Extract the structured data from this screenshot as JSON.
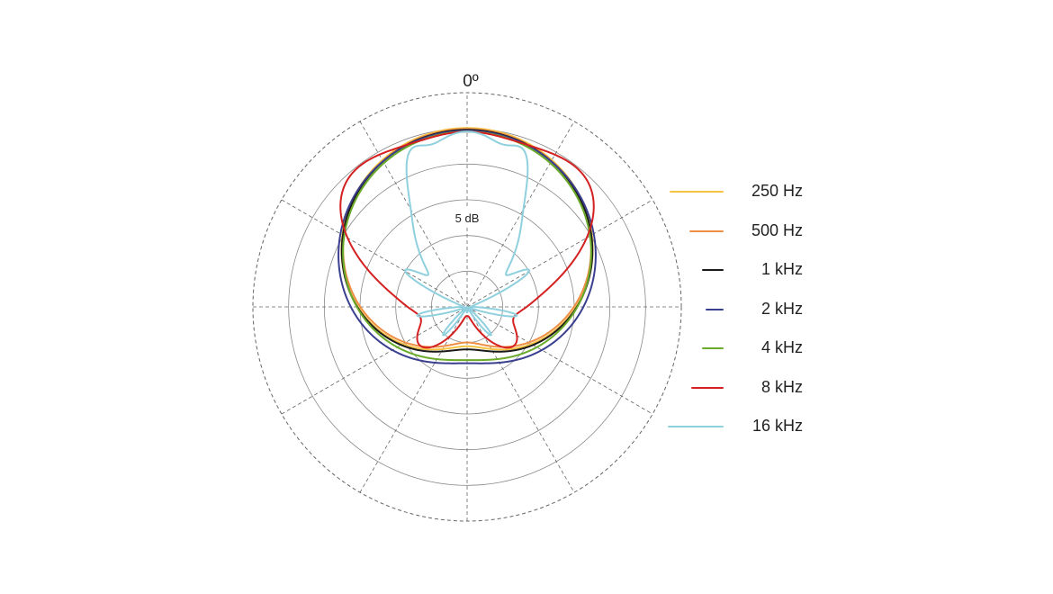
{
  "chart_data": {
    "type": "polar",
    "title": "",
    "angle_label": "0º",
    "radial_label": "5 dB",
    "radial_rings": 6,
    "angle_step_deg": 30,
    "max_level": 1.0,
    "series": [
      {
        "name": "250 Hz",
        "color": "#f5c242",
        "swatch_length": 60,
        "pattern": {
          "type": "cardioid",
          "a": 0.61,
          "power": 1.0,
          "scale": 1.0
        }
      },
      {
        "name": "500 Hz",
        "color": "#ef8f45",
        "swatch_length": 38,
        "pattern": {
          "type": "cardioid",
          "a": 0.6,
          "power": 1.0,
          "scale": 0.995
        }
      },
      {
        "name": "1 kHz",
        "color": "#1a1a1a",
        "swatch_length": 24,
        "pattern": {
          "type": "cardioid",
          "a": 0.62,
          "power": 1.0,
          "scale": 0.99
        }
      },
      {
        "name": "2 kHz",
        "color": "#3b3f8f",
        "swatch_length": 20,
        "pattern": {
          "type": "cardioid",
          "a": 0.66,
          "power": 1.0,
          "scale": 0.985
        }
      },
      {
        "name": "4 kHz",
        "color": "#6aaa2a",
        "swatch_length": 24,
        "pattern": {
          "type": "cardioid",
          "a": 0.7,
          "power": 1.3,
          "scale": 0.98
        }
      },
      {
        "name": "8 kHz",
        "color": "#d42020",
        "swatch_length": 36,
        "pattern": {
          "type": "lobed",
          "a": 0.66,
          "power": 2.6,
          "scale": 0.98,
          "lobe_amp": 0.13,
          "lobe_n": 4,
          "lobe_width": 0.35
        }
      },
      {
        "name": "16 kHz",
        "color": "#8fd0de",
        "swatch_length": 62,
        "pattern": {
          "type": "spiky",
          "a": 0.55,
          "power": 7.5,
          "scale": 0.98,
          "lobe_amp": 0.18,
          "lobe_n": 9,
          "lobe_width": 0.14
        }
      }
    ]
  }
}
